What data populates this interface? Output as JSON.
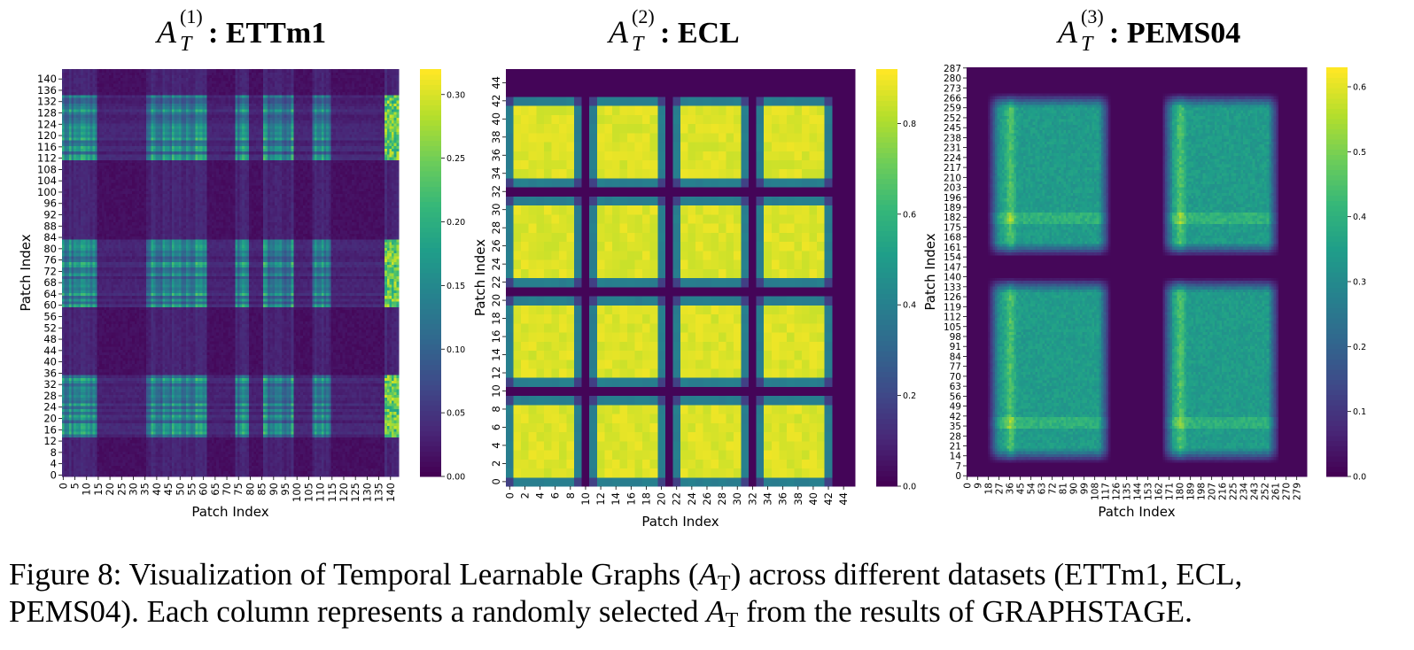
{
  "chart_data": [
    {
      "type": "heatmap",
      "title_symbol": "A",
      "title_sub": "T",
      "title_sup": "(1)",
      "title_name": ": ETTm1",
      "xlabel": "Patch Index",
      "ylabel": "Patch Index",
      "n": 144,
      "xticks": [
        "0",
        "5",
        "10",
        "15",
        "20",
        "25",
        "30",
        "35",
        "40",
        "45",
        "50",
        "55",
        "60",
        "65",
        "70",
        "75",
        "80",
        "85",
        "90",
        "95",
        "100",
        "105",
        "110",
        "115",
        "120",
        "125",
        "130",
        "135",
        "140"
      ],
      "xtick_values": [
        0,
        5,
        10,
        15,
        20,
        25,
        30,
        35,
        40,
        45,
        50,
        55,
        60,
        65,
        70,
        75,
        80,
        85,
        90,
        95,
        100,
        105,
        110,
        115,
        120,
        125,
        130,
        135,
        140
      ],
      "yticks": [
        "0",
        "4",
        "8",
        "12",
        "16",
        "20",
        "24",
        "28",
        "32",
        "36",
        "40",
        "44",
        "48",
        "52",
        "56",
        "60",
        "64",
        "68",
        "72",
        "76",
        "80",
        "84",
        "88",
        "92",
        "96",
        "100",
        "104",
        "108",
        "112",
        "116",
        "120",
        "124",
        "128",
        "132",
        "136",
        "140"
      ],
      "ytick_values": [
        0,
        4,
        8,
        12,
        16,
        20,
        24,
        28,
        32,
        36,
        40,
        44,
        48,
        52,
        56,
        60,
        64,
        68,
        72,
        76,
        80,
        84,
        88,
        92,
        96,
        100,
        104,
        108,
        112,
        116,
        120,
        124,
        128,
        132,
        136,
        140
      ],
      "colorbar_ticks": [
        "0.00",
        "0.05",
        "0.10",
        "0.15",
        "0.20",
        "0.25",
        "0.30"
      ],
      "colorbar_values": [
        0.0,
        0.05,
        0.1,
        0.15,
        0.2,
        0.25,
        0.3
      ],
      "vmin": 0.0,
      "vmax": 0.32,
      "colormap": "viridis",
      "col_bands": [
        [
          0,
          15
        ],
        [
          36,
          62
        ],
        [
          74,
          80
        ],
        [
          86,
          99
        ],
        [
          107,
          115
        ],
        [
          138,
          144
        ]
      ],
      "row_bands": [
        [
          14,
          36
        ],
        [
          60,
          84
        ],
        [
          112,
          135
        ]
      ],
      "band_strength": 0.15,
      "hot_columns": [
        [
          138,
          144
        ]
      ],
      "hot_strength": 0.3
    },
    {
      "type": "heatmap",
      "title_symbol": "A",
      "title_sub": "T",
      "title_sup": "(2)",
      "title_name": ": ECL",
      "xlabel": "Patch Index",
      "ylabel": "Patch Index",
      "n": 46,
      "xticks": [
        "0",
        "2",
        "4",
        "6",
        "8",
        "10",
        "12",
        "14",
        "16",
        "18",
        "20",
        "22",
        "24",
        "26",
        "28",
        "30",
        "32",
        "34",
        "36",
        "38",
        "40",
        "42",
        "44"
      ],
      "xtick_values": [
        0,
        2,
        4,
        6,
        8,
        10,
        12,
        14,
        16,
        18,
        20,
        22,
        24,
        26,
        28,
        30,
        32,
        34,
        36,
        38,
        40,
        42,
        44
      ],
      "yticks": [
        "0",
        "2",
        "4",
        "6",
        "8",
        "10",
        "12",
        "14",
        "16",
        "18",
        "20",
        "22",
        "24",
        "26",
        "28",
        "30",
        "32",
        "34",
        "36",
        "38",
        "40",
        "42",
        "44"
      ],
      "ytick_values": [
        0,
        2,
        4,
        6,
        8,
        10,
        12,
        14,
        16,
        18,
        20,
        22,
        24,
        26,
        28,
        30,
        32,
        34,
        36,
        38,
        40,
        42,
        44
      ],
      "colorbar_ticks": [
        "0.0",
        "0.2",
        "0.4",
        "0.6",
        "0.8"
      ],
      "colorbar_values": [
        0.0,
        0.2,
        0.4,
        0.6,
        0.8
      ],
      "vmin": 0.0,
      "vmax": 0.92,
      "colormap": "viridis",
      "block_centers": [
        4.5,
        15.5,
        26.5,
        37.5
      ],
      "block_half_width": 4.5,
      "block_peak": 0.9
    },
    {
      "type": "heatmap",
      "title_symbol": "A",
      "title_sub": "T",
      "title_sup": "(3)",
      "title_name": ": PEMS04",
      "xlabel": "Patch Index",
      "ylabel": "Patch Index",
      "n": 288,
      "xticks": [
        "0",
        "9",
        "18",
        "27",
        "36",
        "45",
        "54",
        "63",
        "72",
        "81",
        "90",
        "99",
        "108",
        "117",
        "126",
        "135",
        "144",
        "153",
        "162",
        "171",
        "180",
        "189",
        "198",
        "207",
        "216",
        "225",
        "234",
        "243",
        "252",
        "261",
        "270",
        "279"
      ],
      "xtick_values": [
        0,
        9,
        18,
        27,
        36,
        45,
        54,
        63,
        72,
        81,
        90,
        99,
        108,
        117,
        126,
        135,
        144,
        153,
        162,
        171,
        180,
        189,
        198,
        207,
        216,
        225,
        234,
        243,
        252,
        261,
        270,
        279
      ],
      "yticks": [
        "0",
        "7",
        "14",
        "21",
        "28",
        "35",
        "42",
        "49",
        "56",
        "63",
        "70",
        "77",
        "84",
        "91",
        "98",
        "105",
        "112",
        "119",
        "126",
        "133",
        "140",
        "147",
        "154",
        "161",
        "168",
        "175",
        "182",
        "189",
        "196",
        "203",
        "210",
        "217",
        "224",
        "231",
        "238",
        "245",
        "252",
        "259",
        "266",
        "273",
        "280",
        "287"
      ],
      "ytick_values": [
        0,
        7,
        14,
        21,
        28,
        35,
        42,
        49,
        56,
        63,
        70,
        77,
        84,
        91,
        98,
        105,
        112,
        119,
        126,
        133,
        140,
        147,
        154,
        161,
        168,
        175,
        182,
        189,
        196,
        203,
        210,
        217,
        224,
        231,
        238,
        245,
        252,
        259,
        266,
        273,
        280,
        287
      ],
      "colorbar_ticks": [
        "0.0",
        "0.1",
        "0.2",
        "0.3",
        "0.4",
        "0.5",
        "0.6"
      ],
      "colorbar_values": [
        0.0,
        0.1,
        0.2,
        0.3,
        0.4,
        0.5,
        0.6
      ],
      "vmin": 0.0,
      "vmax": 0.63,
      "colormap": "viridis",
      "col_hot_ranges": [
        [
          28,
          112
        ],
        [
          175,
          255
        ]
      ],
      "row_hot_ranges": [
        [
          20,
          130
        ],
        [
          165,
          260
        ]
      ],
      "peak_value": 0.6
    }
  ],
  "caption": {
    "part1": "Figure 8: Visualization of Temporal Learnable Graphs (",
    "sym": "A",
    "sub": "T",
    "part2": ") across different datasets (ETTm1, ECL,",
    "part3": "PEMS04). Each column represents a randomly selected ",
    "sym2": "A",
    "sub2": "T",
    "part4": " from the results of ",
    "name_a": "G",
    "name_b": "RAPH",
    "name_c": "STAGE",
    "part5": "."
  }
}
